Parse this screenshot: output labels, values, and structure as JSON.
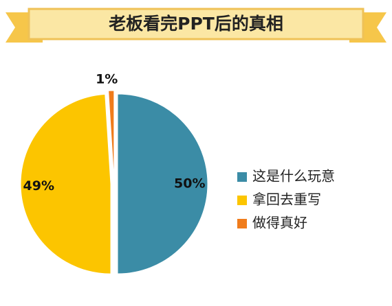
{
  "chart_data": {
    "type": "pie",
    "title": "老板看完PPT后的真相",
    "categories": [
      "这是什么玩意",
      "拿回去重写",
      "做得真好"
    ],
    "values": [
      50,
      49,
      1
    ],
    "value_labels": [
      "50%",
      "49%",
      "1%"
    ],
    "colors": [
      "#3b8ca6",
      "#fcc500",
      "#f07c1c"
    ],
    "legend": "right"
  }
}
